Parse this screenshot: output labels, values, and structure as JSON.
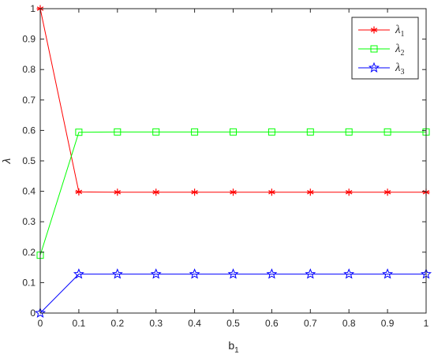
{
  "chart_data": {
    "type": "line",
    "title": "",
    "xlabel": "b",
    "xlabel_subscript": "1",
    "ylabel": "λ",
    "x": [
      0,
      0.1,
      0.2,
      0.3,
      0.4,
      0.5,
      0.6,
      0.7,
      0.8,
      0.9,
      1
    ],
    "xlim": [
      0,
      1
    ],
    "ylim": [
      0,
      1
    ],
    "xticks": [
      "0",
      "0.1",
      "0.2",
      "0.3",
      "0.4",
      "0.5",
      "0.6",
      "0.7",
      "0.8",
      "0.9",
      "1"
    ],
    "yticks": [
      "0",
      "0.1",
      "0.2",
      "0.3",
      "0.4",
      "0.5",
      "0.6",
      "0.7",
      "0.8",
      "0.9",
      "1"
    ],
    "grid": false,
    "legend_position": "top-right",
    "series": [
      {
        "name": "λ",
        "subscript": "1",
        "color": "#ff0000",
        "marker": "asterisk",
        "values": [
          1.0,
          0.398,
          0.397,
          0.397,
          0.397,
          0.397,
          0.397,
          0.397,
          0.397,
          0.397,
          0.397
        ]
      },
      {
        "name": "λ",
        "subscript": "2",
        "color": "#00ff00",
        "marker": "square",
        "values": [
          0.19,
          0.594,
          0.595,
          0.595,
          0.595,
          0.595,
          0.595,
          0.595,
          0.595,
          0.595,
          0.595
        ]
      },
      {
        "name": "λ",
        "subscript": "3",
        "color": "#0000ff",
        "marker": "star",
        "values": [
          0.0,
          0.128,
          0.128,
          0.128,
          0.128,
          0.128,
          0.128,
          0.128,
          0.128,
          0.128,
          0.128
        ]
      }
    ]
  }
}
